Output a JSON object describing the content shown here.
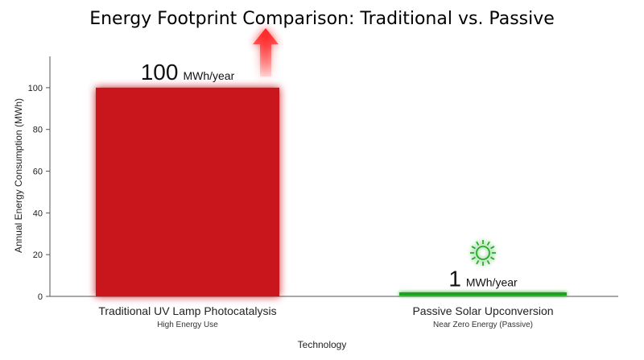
{
  "chart_data": {
    "type": "bar",
    "title": "Energy Footprint Comparison: Traditional vs. Passive",
    "xlabel": "Technology",
    "ylabel": "Annual Energy Consumption (MWh)",
    "ylim": [
      0,
      115
    ],
    "yticks": [
      "0",
      "20",
      "40",
      "60",
      "80",
      "100"
    ],
    "grid": false,
    "categories": [
      "Traditional UV Lamp Photocatalysis",
      "Passive Solar Upconversion"
    ],
    "subcategories": [
      "High Energy Use",
      "Near Zero Energy (Passive)"
    ],
    "values": [
      100,
      1
    ],
    "value_numbers": [
      "100",
      "1"
    ],
    "value_unit": "MWh/year",
    "colors": [
      "#c8161d",
      "#1aa51f"
    ],
    "icons": [
      "up-arrow-icon",
      "sun-icon"
    ]
  }
}
